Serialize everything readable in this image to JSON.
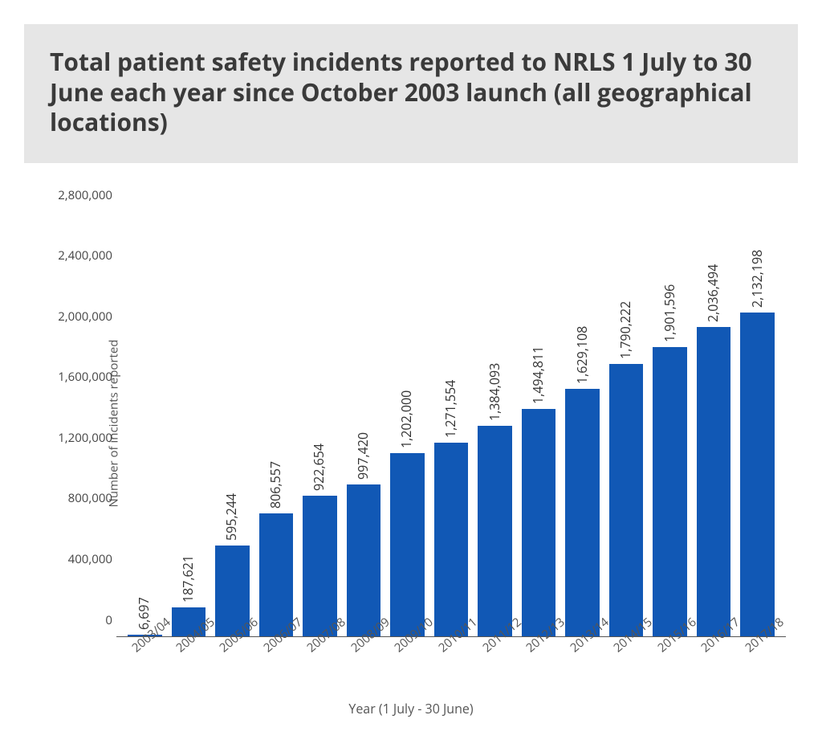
{
  "title": "Total patient safety incidents reported to NRLS 1 July to 30 June each year since October 2003 launch (all geographical locations)",
  "chart": {
    "type": "bar",
    "x_axis_label": "Year (1 July - 30 June)",
    "y_axis_label": "Number of incidents reported",
    "ylim": [
      0,
      2800000
    ],
    "ytick_step": 400000,
    "yticks": [
      {
        "value": 0,
        "label": "0"
      },
      {
        "value": 400000,
        "label": "400,000"
      },
      {
        "value": 800000,
        "label": "800,000"
      },
      {
        "value": 1200000,
        "label": "1,200,000"
      },
      {
        "value": 1600000,
        "label": "1,600,000"
      },
      {
        "value": 2000000,
        "label": "2,000,000"
      },
      {
        "value": 2400000,
        "label": "2,400,000"
      },
      {
        "value": 2800000,
        "label": "2,800,000"
      }
    ],
    "bars": [
      {
        "category": "2003/04",
        "value": 6697,
        "label": "6,697"
      },
      {
        "category": "2004/05",
        "value": 187621,
        "label": "187,621"
      },
      {
        "category": "2005/06",
        "value": 595244,
        "label": "595,244"
      },
      {
        "category": "2006/07",
        "value": 806557,
        "label": "806,557"
      },
      {
        "category": "2007/08",
        "value": 922654,
        "label": "922,654"
      },
      {
        "category": "2008/09",
        "value": 997420,
        "label": "997,420"
      },
      {
        "category": "2009/10",
        "value": 1202000,
        "label": "1,202,000"
      },
      {
        "category": "2010/11",
        "value": 1271554,
        "label": "1,271,554"
      },
      {
        "category": "2011/12",
        "value": 1384093,
        "label": "1,384,093"
      },
      {
        "category": "2012/13",
        "value": 1494811,
        "label": "1,494,811"
      },
      {
        "category": "2013/14",
        "value": 1629108,
        "label": "1,629,108"
      },
      {
        "category": "2014/15",
        "value": 1790222,
        "label": "1,790,222"
      },
      {
        "category": "2015/16",
        "value": 1901596,
        "label": "1,901,596"
      },
      {
        "category": "2016/17",
        "value": 2036494,
        "label": "2,036,494"
      },
      {
        "category": "2017/18",
        "value": 2132198,
        "label": "2,132,198"
      }
    ],
    "bar_color": "#1158b5",
    "bar_width_ratio": 0.78,
    "background_color": "#ffffff",
    "title_background": "#e6e6e6",
    "title_color": "#3a3a3a",
    "title_fontsize": 30,
    "axis_label_color": "#555555",
    "tick_label_color": "#444444",
    "bar_label_color": "#333333",
    "bar_label_fontsize": 16,
    "tick_fontsize": 15,
    "axis_border_color": "#555555",
    "x_label_rotation_deg": -40,
    "bar_label_rotation_deg": -90
  }
}
